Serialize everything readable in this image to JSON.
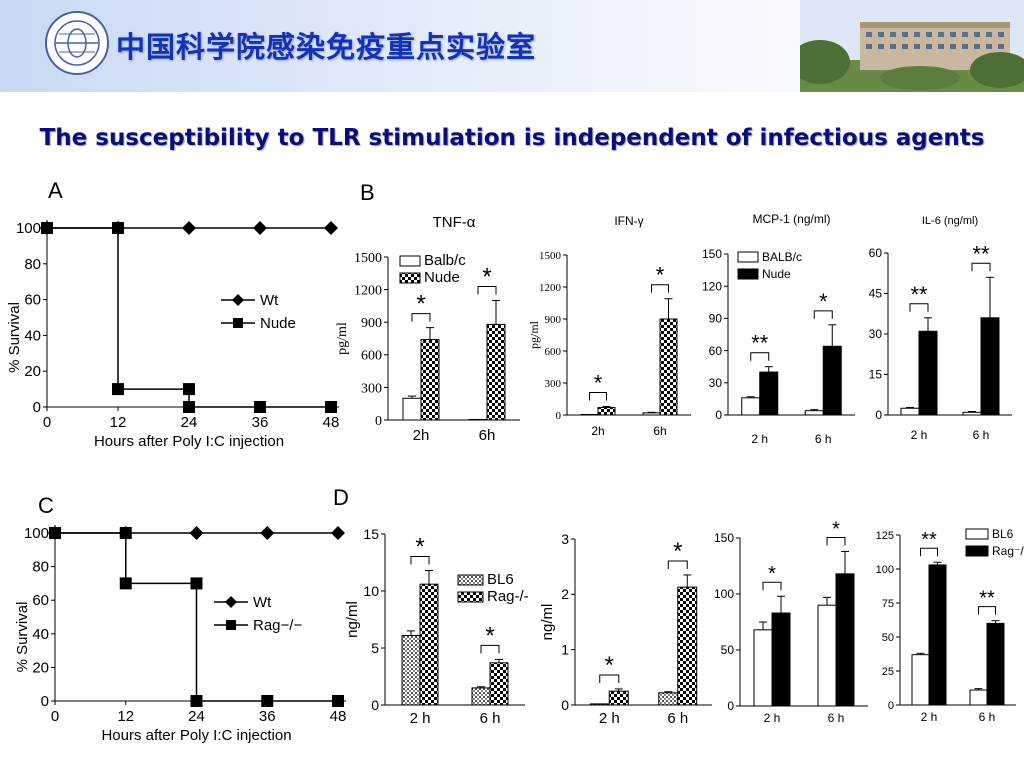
{
  "header": {
    "institute_title": "中国科学院感染免疫重点实验室",
    "logo_text": "INSTITUTE OF BIOPHYSICS"
  },
  "slide": {
    "title": "The susceptibility to TLR stimulation is independent of infectious agents",
    "panel_labels": [
      "A",
      "B",
      "C",
      "D"
    ]
  },
  "colors": {
    "title": "#0d0d78",
    "header_title": "#1632b4",
    "banner": "#c9d9f4"
  },
  "chart_data": [
    {
      "id": "A",
      "type": "line",
      "xlabel": "Hours after Poly I:C injection",
      "ylabel": "% Survival",
      "xticks": [
        "0",
        "12",
        "24",
        "36",
        "48"
      ],
      "yticks": [
        "0",
        "20",
        "40",
        "60",
        "80",
        "100"
      ],
      "xlim": [
        0,
        48
      ],
      "ylim": [
        0,
        100
      ],
      "legend": "right",
      "series": [
        {
          "name": "Wt",
          "marker": "diamond",
          "x": [
            0,
            12,
            24,
            36,
            48
          ],
          "y": [
            100,
            100,
            100,
            100,
            100
          ]
        },
        {
          "name": "Nude",
          "marker": "square",
          "x": [
            0,
            12,
            12,
            24,
            24,
            36,
            48
          ],
          "y": [
            100,
            100,
            10,
            10,
            0,
            0,
            0
          ],
          "markers_at": [
            0,
            1,
            3,
            4,
            5,
            6
          ],
          "extra": [
            [
              12,
              10
            ]
          ]
        }
      ]
    },
    {
      "id": "C",
      "type": "line",
      "xlabel": "Hours after Poly I:C injection",
      "ylabel": "% Survival",
      "xticks": [
        "0",
        "12",
        "24",
        "36",
        "48"
      ],
      "yticks": [
        "0",
        "20",
        "40",
        "60",
        "80",
        "100"
      ],
      "xlim": [
        0,
        48
      ],
      "ylim": [
        0,
        100
      ],
      "legend": "right",
      "series": [
        {
          "name": "Wt",
          "marker": "diamond",
          "x": [
            0,
            12,
            24,
            36,
            48
          ],
          "y": [
            100,
            100,
            100,
            100,
            100
          ]
        },
        {
          "name": "Rag−/−",
          "marker": "square",
          "x": [
            0,
            12,
            12,
            24,
            24,
            36,
            48
          ],
          "y": [
            100,
            100,
            70,
            70,
            0,
            0,
            0
          ]
        }
      ]
    },
    {
      "id": "B1",
      "type": "bar",
      "title": "TNF-α",
      "ylabel": "pg/ml",
      "categories": [
        "2h",
        "6h"
      ],
      "ylim": [
        0,
        1500
      ],
      "yticks": [
        "0",
        "300",
        "600",
        "900",
        "1200",
        "1500"
      ],
      "series": [
        {
          "name": "Balb/c",
          "style": "white",
          "values": [
            200,
            5
          ],
          "err": [
            20,
            0
          ]
        },
        {
          "name": "Nude",
          "style": "check",
          "values": [
            740,
            880
          ],
          "err": [
            110,
            220
          ]
        }
      ],
      "sig": [
        "*",
        "*"
      ]
    },
    {
      "id": "B2",
      "type": "bar",
      "title": "IFN-γ",
      "ylabel": "pg/ml",
      "categories": [
        "2h",
        "6h"
      ],
      "ylim": [
        0,
        1500
      ],
      "yticks": [
        "0",
        "300",
        "600",
        "900",
        "1200",
        "1500"
      ],
      "series": [
        {
          "name": "",
          "style": "white",
          "values": [
            5,
            20
          ],
          "err": [
            0,
            5
          ]
        },
        {
          "name": "",
          "style": "check",
          "values": [
            70,
            900
          ],
          "err": [
            10,
            190
          ]
        }
      ],
      "sig": [
        "*",
        "*"
      ]
    },
    {
      "id": "B3",
      "type": "bar",
      "title": "MCP-1 (ng/ml)",
      "ylabel": "",
      "categories": [
        "2 h",
        "6 h"
      ],
      "ylim": [
        0,
        150
      ],
      "yticks": [
        "0",
        "30",
        "60",
        "90",
        "120",
        "150"
      ],
      "series": [
        {
          "name": "BALB/c",
          "style": "white",
          "values": [
            16,
            4
          ],
          "err": [
            1,
            1
          ]
        },
        {
          "name": "Nude",
          "style": "black",
          "values": [
            40,
            64
          ],
          "err": [
            5,
            20
          ]
        }
      ],
      "sig": [
        "**",
        "*"
      ]
    },
    {
      "id": "B4",
      "type": "bar",
      "title": "IL-6 (ng/ml)",
      "ylabel": "",
      "categories": [
        "2 h",
        "6 h"
      ],
      "ylim": [
        0,
        60
      ],
      "yticks": [
        "0",
        "15",
        "30",
        "45",
        "60"
      ],
      "series": [
        {
          "name": "",
          "style": "white",
          "values": [
            2.5,
            1
          ],
          "err": [
            0.3,
            0.3
          ]
        },
        {
          "name": "",
          "style": "black",
          "values": [
            31,
            36
          ],
          "err": [
            5,
            15
          ]
        }
      ],
      "sig": [
        "**",
        "**"
      ]
    },
    {
      "id": "D1",
      "type": "bar",
      "title": "",
      "ylabel": "ng/ml",
      "categories": [
        "2 h",
        "6 h"
      ],
      "ylim": [
        0,
        15
      ],
      "yticks": [
        "0",
        "5",
        "10",
        "15"
      ],
      "series": [
        {
          "name": "BL6",
          "style": "dots",
          "values": [
            6.1,
            1.5
          ],
          "err": [
            0.4,
            0.1
          ]
        },
        {
          "name": "Rag-/-",
          "style": "check",
          "values": [
            10.6,
            3.7
          ],
          "err": [
            1.2,
            0.3
          ]
        }
      ],
      "sig": [
        "*",
        "*"
      ]
    },
    {
      "id": "D2",
      "type": "bar",
      "title": "",
      "ylabel": "ng/ml",
      "categories": [
        "2 h",
        "6 h"
      ],
      "ylim": [
        0,
        3
      ],
      "yticks": [
        "0",
        "1",
        "2",
        "3"
      ],
      "series": [
        {
          "name": "",
          "style": "dots",
          "values": [
            0.02,
            0.22
          ],
          "err": [
            0,
            0.02
          ]
        },
        {
          "name": "",
          "style": "check",
          "values": [
            0.25,
            2.13
          ],
          "err": [
            0.04,
            0.22
          ]
        }
      ],
      "sig": [
        "*",
        "*"
      ]
    },
    {
      "id": "D3",
      "type": "bar",
      "title": "",
      "ylabel": "",
      "categories": [
        "2 h",
        "6 h"
      ],
      "ylim": [
        0,
        150
      ],
      "yticks": [
        "0",
        "50",
        "100",
        "150"
      ],
      "series": [
        {
          "name": "",
          "style": "white",
          "values": [
            68,
            90
          ],
          "err": [
            7,
            7
          ]
        },
        {
          "name": "",
          "style": "black",
          "values": [
            83,
            118
          ],
          "err": [
            15,
            20
          ]
        }
      ],
      "sig": [
        "*",
        "*"
      ]
    },
    {
      "id": "D4",
      "type": "bar",
      "title": "",
      "ylabel": "",
      "categories": [
        "2 h",
        "6 h"
      ],
      "ylim": [
        0,
        125
      ],
      "yticks": [
        "0",
        "25",
        "50",
        "75",
        "100",
        "125"
      ],
      "series": [
        {
          "name": "BL6",
          "style": "white",
          "values": [
            37,
            11
          ],
          "err": [
            1,
            1
          ]
        },
        {
          "name": "Rag⁻/⁻",
          "style": "black",
          "values": [
            103,
            60
          ],
          "err": [
            2,
            2
          ]
        }
      ],
      "sig": [
        "**",
        "**"
      ]
    }
  ]
}
